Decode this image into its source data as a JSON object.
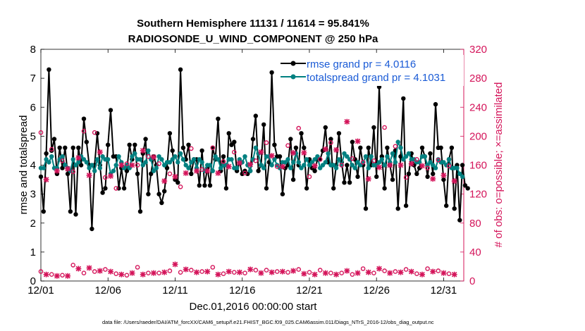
{
  "chart_data": {
    "type": "line",
    "title": "Southern Hemisphere 11131 / 11614 = 95.841%",
    "subtitle": "RADIOSONDE_U_WIND_COMPONENT @ 250 hPa",
    "xlabel": "Dec.01,2016 00:00:00 start",
    "ylabel_left": "rmse and totalspread",
    "ylabel_right": "# of obs: o=possible; ×=assimilated",
    "footnote": "data file: /Users/raeder/DAI/ATM_forcXX/CAM6_setup/f.e21.FHIST_BGC.f09_025.CAM6assim.011/Diags_NTrS_2016-12/obs_diag_output.nc",
    "xlim": [
      0,
      31.5
    ],
    "ylim_left": [
      0,
      8
    ],
    "ylim_right": [
      0,
      320
    ],
    "x_ticks": [
      0,
      5,
      10,
      15,
      20,
      25,
      30
    ],
    "x_tick_labels": [
      "12/01",
      "12/06",
      "12/11",
      "12/16",
      "12/21",
      "12/26",
      "12/31"
    ],
    "y_ticks_left": [
      0,
      1,
      2,
      3,
      4,
      5,
      6,
      7,
      8
    ],
    "y_ticks_right": [
      0,
      40,
      80,
      120,
      160,
      200,
      240,
      280,
      320
    ],
    "colors": {
      "rmse": "#000000",
      "spread": "#008080",
      "obs": "#d4145a",
      "legend_text": "#1a5bd6"
    },
    "series": [
      {
        "name": "rmse grand pr = 4.0116",
        "color": "#000000",
        "values": [
          3.6,
          2.4,
          4.4,
          7.3,
          4.5,
          4.9,
          3.7,
          4.6,
          3.9,
          4.6,
          3.7,
          2.4,
          4.6,
          2.3,
          4.6,
          4.0,
          5.6,
          4.8,
          4.0,
          1.8,
          4.0,
          5.1,
          4.0,
          3.05,
          3.2,
          4.7,
          5.9,
          4.3,
          4.3,
          3.2,
          3.9,
          3.2,
          3.8,
          4.7,
          4.2,
          4.7,
          3.7,
          2.4,
          4.4,
          4.9,
          3.0,
          3.7,
          4.3,
          4.0,
          3.0,
          2.7,
          3.1,
          3.9,
          5.1,
          4.5,
          3.5,
          3.4,
          7.3,
          4.6,
          4.2,
          4.7,
          3.7,
          4.2,
          4.2,
          3.3,
          4.5,
          3.3,
          3.9,
          3.3,
          4.6,
          4.2,
          5.6,
          3.8,
          4.3,
          3.2,
          5.1,
          4.7,
          4.8,
          3.8,
          4.1,
          3.7,
          3.8,
          3.7,
          3.8,
          4.9,
          5.7,
          3.8,
          4.0,
          5.4,
          3.2,
          4.1,
          7.2,
          4.7,
          4.3,
          4.3,
          3.0,
          3.9,
          4.0,
          4.9,
          3.5,
          4.6,
          4.0,
          5.1,
          4.6,
          3.2,
          4.2,
          3.9,
          3.8,
          4.2,
          4.2,
          4.5,
          5.3,
          4.1,
          4.9,
          3.2,
          4.0,
          5.1,
          4.1,
          3.4,
          4.0,
          3.4,
          4.8,
          4.2,
          3.6,
          4.6,
          4.0,
          2.5,
          4.6,
          4.0,
          5.3,
          3.6,
          6.7,
          4.3,
          3.2,
          4.6,
          4.0,
          3.5,
          4.5,
          2.5,
          4.3,
          6.3,
          2.6,
          3.7,
          4.4,
          4.0,
          3.7,
          3.9,
          4.6,
          4.3,
          3.6,
          4.4,
          3.7,
          6.1,
          4.6,
          4.6,
          3.5,
          2.6,
          4.2,
          4.6,
          2.5,
          4.0,
          2.1,
          4.0,
          3.3,
          3.2
        ],
        "legend": "rmse grand pr = 4.0116"
      },
      {
        "name": "totalspread grand pr = 4.1031",
        "color": "#008080",
        "values": [
          3.9,
          3.9,
          4.2,
          4.1,
          4.3,
          3.9,
          3.9,
          4.2,
          4.3,
          4.0,
          3.9,
          3.8,
          4.2,
          4.0,
          4.1,
          4.3,
          4.2,
          4.1,
          3.9,
          4.0,
          3.8,
          4.2,
          3.9,
          4.3,
          4.2,
          4.2,
          3.7,
          3.8,
          4.0,
          4.3,
          4.1,
          3.9,
          4.0,
          3.9,
          4.3,
          4.4,
          4.2,
          4.2,
          4.0,
          4.1,
          4.5,
          4.2,
          3.8,
          3.9,
          4.3,
          4.2,
          4.0,
          4.1,
          4.1,
          4.2,
          4.3,
          4.1,
          4.4,
          4.2,
          4.0,
          3.9,
          4.1,
          4.2,
          3.9,
          4.2,
          4.1,
          3.8,
          4.0,
          4.0,
          3.8,
          4.3,
          4.2,
          3.9,
          4.0,
          4.0,
          4.2,
          4.2,
          3.9,
          3.9,
          4.2,
          4.1,
          4.3,
          4.0,
          3.8,
          4.2,
          4.6,
          4.4,
          4.0,
          3.9,
          4.3,
          4.3,
          4.0,
          4.2,
          4.0,
          3.9,
          4.1,
          4.1,
          4.2,
          3.9,
          4.1,
          4.4,
          4.1,
          3.9,
          4.0,
          4.2,
          4.0,
          4.1,
          4.2,
          4.3,
          3.9,
          4.0,
          4.1,
          4.4,
          4.0,
          4.0,
          3.9,
          4.2,
          4.0,
          4.4,
          4.3,
          4.2,
          4.0,
          3.9,
          4.1,
          4.0,
          4.1,
          4.3,
          3.9,
          4.3,
          4.0,
          4.0,
          4.1,
          4.2,
          4.0,
          4.3,
          4.1,
          4.4,
          4.1,
          4.8,
          4.6,
          4.2,
          4.3,
          4.4,
          4.2,
          4.2,
          4.1,
          4.1,
          4.3,
          4.3,
          4.0,
          4.1,
          4.0,
          3.9,
          4.2,
          4.1,
          4.1,
          4.0,
          4.2,
          3.9,
          3.9,
          3.9,
          3.7,
          3.6
        ],
        "legend": "totalspread grand pr = 4.1031"
      }
    ],
    "obs_series": [
      {
        "name": "possible",
        "marker": "o",
        "axis": "right",
        "values": [
          205,
          14,
          145,
          164,
          182,
          170,
          156,
          176,
          166,
          158,
          159,
          167,
          151,
          141,
          174,
          164,
          207,
          169,
          150,
          172,
          205,
          170,
          182,
          148,
          143,
          164,
          149,
          172,
          128,
          155,
          164,
          137,
          162,
          151,
          164,
          156,
          160,
          161,
          184,
          176,
          172,
          183,
          175,
          149,
          162,
          164,
          142,
          180,
          148,
          173,
          148,
          176,
          130,
          165,
          153,
          191,
          183,
          159,
          156,
          150,
          154,
          163,
          156,
          163,
          184,
          183,
          153,
          163,
          165,
          189,
          162,
          146,
          178,
          156,
          167,
          165,
          149,
          185,
          165,
          161,
          166,
          169,
          182,
          161,
          191,
          178,
          177,
          159,
          158,
          174,
          162,
          170,
          187,
          176,
          181,
          184,
          211,
          167,
          181,
          175,
          144,
          143,
          163,
          183,
          168,
          183,
          186,
          163,
          191,
          209,
          185,
          162,
          160,
          187,
          224,
          215,
          169,
          208,
          197,
          175,
          164,
          164,
          145,
          159,
          166,
          198,
          161,
          176,
          212,
          209,
          164,
          177,
          186,
          191,
          164,
          142,
          143,
          152,
          166,
          158,
          168,
          160,
          163,
          173,
          156,
          152,
          145,
          175,
          167,
          141,
          150,
          171,
          159,
          153,
          142,
          138
        ],
        "draw_every": 1
      },
      {
        "name": "assimilated",
        "marker": "x",
        "axis": "right",
        "values": [
          200,
          12,
          140,
          160,
          178,
          165,
          152,
          172,
          162,
          154,
          155,
          163,
          147,
          138,
          170,
          160,
          203,
          165,
          146,
          168,
          201,
          166,
          178,
          144,
          139,
          160,
          145,
          168,
          125,
          151,
          160,
          133,
          158,
          147,
          160,
          152,
          156,
          157,
          180,
          172,
          168,
          179,
          171,
          145,
          158,
          160,
          138,
          176,
          144,
          169,
          144,
          172,
          127,
          161,
          149,
          187,
          179,
          155,
          152,
          146,
          150,
          159,
          152,
          159,
          180,
          179,
          149,
          159,
          161,
          185,
          158,
          142,
          174,
          152,
          163,
          161,
          145,
          181,
          161,
          157,
          162,
          165,
          178,
          157,
          187,
          174,
          173,
          155,
          154,
          170,
          158,
          166,
          183,
          172,
          177,
          180,
          207,
          163,
          177,
          171,
          140,
          139,
          159,
          179,
          164,
          179,
          182,
          159,
          187,
          205,
          181,
          158,
          156,
          183,
          220,
          211,
          165,
          204,
          193,
          171,
          160,
          160,
          141,
          155,
          162,
          194,
          157,
          172,
          208,
          205,
          160,
          173,
          182,
          187,
          160,
          138,
          139,
          148,
          162,
          154,
          164,
          156,
          159,
          169,
          152,
          148,
          141,
          171,
          163,
          137,
          146,
          167,
          155,
          149,
          138,
          134
        ]
      },
      {
        "name": "low-count possible",
        "marker": "o",
        "axis": "right",
        "values": [
          13,
          10,
          10,
          20,
          9,
          11,
          8,
          10,
          8,
          10,
          8,
          17,
          22,
          11,
          18,
          8,
          11,
          10,
          19,
          13,
          13,
          11,
          15,
          13,
          16,
          10,
          14,
          12,
          10,
          13,
          10,
          17,
          8,
          13,
          12,
          13,
          19,
          13,
          10,
          10,
          11,
          17,
          12,
          19,
          11,
          12,
          13,
          10,
          14,
          22,
          24,
          14,
          12,
          10,
          17,
          13,
          15,
          9,
          13,
          11,
          13,
          12,
          14,
          12,
          19,
          16,
          10,
          14,
          10,
          12,
          14,
          16,
          12,
          11,
          13,
          14,
          11,
          15,
          17,
          14,
          15,
          10,
          12,
          13,
          15,
          20,
          13,
          16,
          13,
          16,
          14,
          12,
          12,
          20,
          15,
          15,
          16,
          12,
          11,
          14,
          12,
          11,
          10,
          14,
          15,
          20,
          12,
          11,
          11,
          13,
          10,
          14,
          11,
          13,
          15,
          12,
          9,
          12,
          12,
          14,
          17,
          15,
          13,
          9,
          11,
          10,
          18,
          9,
          14,
          18,
          12,
          10,
          13,
          17,
          13,
          10,
          16,
          15,
          14,
          11,
          10,
          10,
          10,
          9,
          17,
          12,
          14,
          16,
          14,
          10,
          12,
          8,
          10,
          12,
          10,
          10
        ]
      },
      {
        "name": "low-count assimilated",
        "marker": "x",
        "axis": "right",
        "values": [
          12,
          9,
          9,
          19,
          8,
          10,
          7,
          9,
          7,
          9,
          7,
          16,
          21,
          10,
          17,
          7,
          10,
          9,
          18,
          12,
          12,
          10,
          14,
          12,
          15,
          9,
          13,
          11,
          9,
          12,
          9,
          16,
          7,
          12,
          11,
          12,
          18,
          12,
          9,
          9,
          10,
          16,
          11,
          18,
          10,
          11,
          12,
          9,
          13,
          21,
          23,
          13,
          11,
          9,
          16,
          12,
          14,
          8,
          12,
          10,
          12,
          11,
          13,
          11,
          18,
          15,
          9,
          13,
          9,
          11,
          13,
          15,
          11,
          10,
          12,
          13,
          10,
          14,
          16,
          13,
          14,
          9,
          11,
          12,
          14,
          19,
          12,
          15,
          12,
          15,
          13,
          11,
          11,
          19,
          14,
          14,
          15,
          11,
          10,
          13,
          11,
          10,
          9,
          13,
          14,
          19,
          11,
          10,
          10,
          12,
          9,
          13,
          10,
          12,
          14,
          11,
          8,
          11,
          11,
          13,
          16,
          14,
          12,
          8,
          10,
          9,
          17,
          8,
          13,
          17,
          11,
          9,
          12,
          16,
          12,
          9,
          15,
          14,
          13,
          10,
          9,
          9,
          9,
          8,
          16,
          11,
          13,
          15,
          13,
          9,
          11,
          7,
          9,
          11,
          9,
          9
        ]
      }
    ],
    "legend_position": "top-right"
  }
}
